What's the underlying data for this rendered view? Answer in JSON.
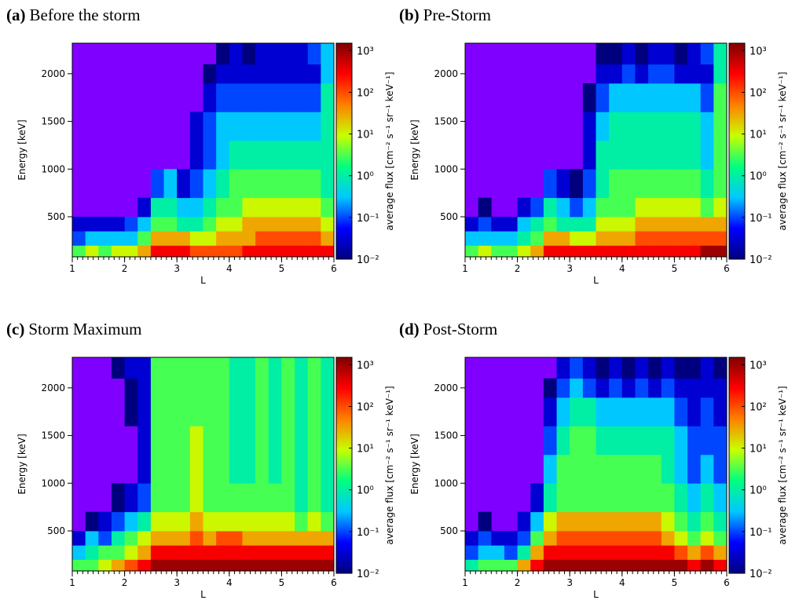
{
  "chart_data": [
    {
      "type": "heatmap",
      "label": "(a)",
      "title": "Before the storm",
      "xlabel": "L",
      "ylabel": "Energy [keV]",
      "colorbar_label": "average flux [cm⁻² s⁻¹ sr⁻¹ keV⁻¹]",
      "x_bins": [
        1,
        1.25,
        1.5,
        1.75,
        2,
        2.25,
        2.5,
        2.75,
        3,
        3.25,
        3.5,
        3.75,
        4,
        4.25,
        4.5,
        4.75,
        5,
        5.25,
        5.5,
        5.75,
        6
      ],
      "y_bins": [
        80,
        200,
        350,
        500,
        700,
        1000,
        1300,
        1600,
        1900,
        2100,
        2320
      ],
      "values": [
        [
          3,
          10,
          3,
          10,
          10,
          30,
          300,
          300,
          300,
          100,
          100,
          100,
          100,
          300,
          300,
          300,
          300,
          300,
          300,
          300
        ],
        [
          0.1,
          0.3,
          0.3,
          0.3,
          0.3,
          3,
          30,
          30,
          30,
          10,
          10,
          30,
          30,
          30,
          100,
          100,
          100,
          100,
          100,
          30
        ],
        [
          0.03,
          0.03,
          0.03,
          0.03,
          0.1,
          0.3,
          3,
          3,
          1,
          1,
          3,
          10,
          10,
          30,
          30,
          30,
          30,
          30,
          30,
          10
        ],
        [
          null,
          null,
          null,
          null,
          null,
          0.03,
          1,
          1,
          0.3,
          0.3,
          1,
          3,
          3,
          10,
          10,
          10,
          10,
          10,
          10,
          3
        ],
        [
          null,
          null,
          null,
          null,
          null,
          null,
          0.1,
          0.3,
          0.03,
          0.1,
          0.3,
          1,
          3,
          3,
          3,
          3,
          3,
          3,
          3,
          1
        ],
        [
          null,
          null,
          null,
          null,
          null,
          null,
          null,
          null,
          null,
          0.03,
          0.1,
          0.3,
          1,
          1,
          1,
          1,
          1,
          1,
          1,
          1
        ],
        [
          null,
          null,
          null,
          null,
          null,
          null,
          null,
          null,
          null,
          0.03,
          0.1,
          0.3,
          0.3,
          0.3,
          0.3,
          0.3,
          0.3,
          0.3,
          0.3,
          1
        ],
        [
          null,
          null,
          null,
          null,
          null,
          null,
          null,
          null,
          null,
          null,
          0.03,
          0.1,
          0.1,
          0.1,
          0.1,
          0.1,
          0.1,
          0.1,
          0.1,
          1
        ],
        [
          null,
          null,
          null,
          null,
          null,
          null,
          null,
          null,
          null,
          null,
          0.01,
          0.03,
          0.03,
          0.03,
          0.03,
          0.03,
          0.03,
          0.03,
          0.03,
          0.3
        ],
        [
          null,
          null,
          null,
          null,
          null,
          null,
          null,
          null,
          null,
          null,
          null,
          0.01,
          0.03,
          0.01,
          0.03,
          0.03,
          0.03,
          0.03,
          0.1,
          0.3
        ]
      ],
      "xlim": [
        1,
        6
      ],
      "ylim": [
        80,
        2320
      ],
      "xticks": [
        1,
        2,
        3,
        4,
        5,
        6
      ],
      "yticks": [
        500,
        1000,
        1500,
        2000
      ],
      "x_minor_step": 0.1,
      "clim": [
        0.01,
        1500
      ],
      "log_color": true,
      "cticks": [
        {
          "value": 0.01,
          "label": "10⁻²"
        },
        {
          "value": 0.1,
          "label": "10⁻¹"
        },
        {
          "value": 1,
          "label": "10⁰"
        },
        {
          "value": 10,
          "label": "10¹"
        },
        {
          "value": 100,
          "label": "10²"
        },
        {
          "value": 1000,
          "label": "10³"
        }
      ],
      "colormap": [
        "#00007f",
        "#0000ff",
        "#00c8ff",
        "#00ff80",
        "#c8ff00",
        "#ff8000",
        "#ff0000",
        "#7f0000"
      ],
      "empty_color": "#8000ff"
    },
    {
      "type": "heatmap",
      "label": "(b)",
      "title": "Pre-Storm",
      "xlabel": "L",
      "ylabel": "Energy [keV]",
      "colorbar_label": "average flux [cm⁻² s⁻¹ sr⁻¹ keV⁻¹]",
      "x_bins": [
        1,
        1.25,
        1.5,
        1.75,
        2,
        2.25,
        2.5,
        2.75,
        3,
        3.25,
        3.5,
        3.75,
        4,
        4.25,
        4.5,
        4.75,
        5,
        5.25,
        5.5,
        5.75,
        6
      ],
      "y_bins": [
        80,
        200,
        350,
        500,
        700,
        1000,
        1300,
        1600,
        1900,
        2100,
        2320
      ],
      "values": [
        [
          3,
          10,
          3,
          3,
          10,
          30,
          300,
          300,
          300,
          300,
          300,
          300,
          300,
          300,
          300,
          300,
          300,
          300,
          1000,
          1000
        ],
        [
          0.3,
          0.3,
          0.3,
          0.3,
          1,
          3,
          30,
          30,
          10,
          10,
          30,
          30,
          30,
          100,
          100,
          100,
          100,
          100,
          100,
          100
        ],
        [
          0.03,
          0.1,
          0.03,
          0.03,
          0.3,
          1,
          3,
          1,
          1,
          1,
          10,
          10,
          10,
          30,
          30,
          30,
          30,
          30,
          30,
          30
        ],
        [
          null,
          0.01,
          null,
          null,
          0.03,
          0.1,
          1,
          0.3,
          0.1,
          0.3,
          3,
          3,
          3,
          10,
          10,
          10,
          10,
          10,
          3,
          10
        ],
        [
          null,
          null,
          null,
          null,
          null,
          null,
          0.1,
          0.03,
          0.01,
          0.1,
          1,
          3,
          3,
          3,
          3,
          3,
          3,
          3,
          1,
          3
        ],
        [
          null,
          null,
          null,
          null,
          null,
          null,
          null,
          null,
          null,
          0.03,
          1,
          1,
          1,
          1,
          1,
          1,
          1,
          1,
          0.3,
          3
        ],
        [
          null,
          null,
          null,
          null,
          null,
          null,
          null,
          null,
          null,
          0.03,
          0.3,
          1,
          1,
          1,
          1,
          1,
          1,
          1,
          0.3,
          3
        ],
        [
          null,
          null,
          null,
          null,
          null,
          null,
          null,
          null,
          null,
          0.01,
          0.1,
          0.3,
          0.3,
          0.3,
          0.3,
          0.3,
          0.3,
          0.3,
          0.1,
          3
        ],
        [
          null,
          null,
          null,
          null,
          null,
          null,
          null,
          null,
          null,
          null,
          0.03,
          0.03,
          0.1,
          0.03,
          0.1,
          0.1,
          0.03,
          0.03,
          0.03,
          1
        ],
        [
          null,
          null,
          null,
          null,
          null,
          null,
          null,
          null,
          null,
          null,
          0.01,
          0.01,
          0.03,
          0.01,
          0.03,
          0.03,
          0.01,
          0.03,
          0.1,
          1
        ]
      ],
      "xlim": [
        1,
        6
      ],
      "ylim": [
        80,
        2320
      ],
      "xticks": [
        1,
        2,
        3,
        4,
        5,
        6
      ],
      "yticks": [
        500,
        1000,
        1500,
        2000
      ],
      "x_minor_step": 0.1,
      "clim": [
        0.01,
        1500
      ],
      "log_color": true,
      "cticks": [
        {
          "value": 0.01,
          "label": "10⁻²"
        },
        {
          "value": 0.1,
          "label": "10⁻¹"
        },
        {
          "value": 1,
          "label": "10⁰"
        },
        {
          "value": 10,
          "label": "10¹"
        },
        {
          "value": 100,
          "label": "10²"
        },
        {
          "value": 1000,
          "label": "10³"
        }
      ],
      "colormap": [
        "#00007f",
        "#0000ff",
        "#00c8ff",
        "#00ff80",
        "#c8ff00",
        "#ff8000",
        "#ff0000",
        "#7f0000"
      ],
      "empty_color": "#8000ff"
    },
    {
      "type": "heatmap",
      "label": "(c)",
      "title": "Storm Maximum",
      "xlabel": "L",
      "ylabel": "Energy [keV]",
      "colorbar_label": "average flux [cm⁻² s⁻¹ sr⁻¹ keV⁻¹]",
      "x_bins": [
        1,
        1.25,
        1.5,
        1.75,
        2,
        2.25,
        2.5,
        2.75,
        3,
        3.25,
        3.5,
        3.75,
        4,
        4.25,
        4.5,
        4.75,
        5,
        5.25,
        5.5,
        5.75,
        6
      ],
      "y_bins": [
        80,
        200,
        350,
        500,
        700,
        1000,
        1300,
        1600,
        1900,
        2100,
        2320
      ],
      "values": [
        [
          3,
          3,
          10,
          30,
          100,
          300,
          1000,
          1000,
          1000,
          1000,
          1000,
          1000,
          1000,
          1000,
          1000,
          1000,
          1000,
          1000,
          1000,
          1000
        ],
        [
          0.3,
          1,
          3,
          3,
          10,
          30,
          300,
          300,
          300,
          300,
          300,
          300,
          300,
          300,
          300,
          300,
          300,
          300,
          300,
          300
        ],
        [
          0.03,
          0.3,
          0.1,
          1,
          3,
          10,
          30,
          30,
          30,
          100,
          30,
          100,
          100,
          30,
          30,
          30,
          30,
          30,
          30,
          30
        ],
        [
          null,
          0.01,
          0.03,
          0.1,
          0.3,
          1,
          10,
          10,
          10,
          30,
          10,
          10,
          10,
          10,
          10,
          10,
          10,
          3,
          10,
          3
        ],
        [
          null,
          null,
          null,
          0.01,
          0.03,
          0.1,
          3,
          3,
          3,
          10,
          3,
          3,
          3,
          3,
          3,
          3,
          3,
          1,
          3,
          1
        ],
        [
          null,
          null,
          null,
          null,
          null,
          0.03,
          3,
          3,
          3,
          10,
          3,
          3,
          1,
          1,
          3,
          1,
          3,
          1,
          3,
          1
        ],
        [
          null,
          null,
          null,
          null,
          null,
          0.03,
          3,
          3,
          3,
          10,
          3,
          3,
          1,
          1,
          3,
          1,
          3,
          1,
          3,
          1
        ],
        [
          null,
          null,
          null,
          null,
          0.01,
          0.03,
          3,
          3,
          3,
          3,
          3,
          3,
          1,
          1,
          3,
          1,
          3,
          1,
          3,
          1
        ],
        [
          null,
          null,
          null,
          null,
          0.01,
          0.03,
          3,
          3,
          3,
          3,
          3,
          3,
          1,
          1,
          3,
          1,
          3,
          1,
          3,
          1
        ],
        [
          null,
          null,
          null,
          0.01,
          0.03,
          0.03,
          3,
          3,
          3,
          3,
          3,
          3,
          1,
          1,
          3,
          1,
          3,
          1,
          3,
          1
        ]
      ],
      "xlim": [
        1,
        6
      ],
      "ylim": [
        80,
        2320
      ],
      "xticks": [
        1,
        2,
        3,
        4,
        5,
        6
      ],
      "yticks": [
        500,
        1000,
        1500,
        2000
      ],
      "x_minor_step": 0.1,
      "clim": [
        0.01,
        1500
      ],
      "log_color": true,
      "cticks": [
        {
          "value": 0.01,
          "label": "10⁻²"
        },
        {
          "value": 0.1,
          "label": "10⁻¹"
        },
        {
          "value": 1,
          "label": "10⁰"
        },
        {
          "value": 10,
          "label": "10¹"
        },
        {
          "value": 100,
          "label": "10²"
        },
        {
          "value": 1000,
          "label": "10³"
        }
      ],
      "colormap": [
        "#00007f",
        "#0000ff",
        "#00c8ff",
        "#00ff80",
        "#c8ff00",
        "#ff8000",
        "#ff0000",
        "#7f0000"
      ],
      "empty_color": "#8000ff"
    },
    {
      "type": "heatmap",
      "label": "(d)",
      "title": "Post-Storm",
      "xlabel": "L",
      "ylabel": "Energy [keV]",
      "colorbar_label": "average flux [cm⁻² s⁻¹ sr⁻¹ keV⁻¹]",
      "x_bins": [
        1,
        1.25,
        1.5,
        1.75,
        2,
        2.25,
        2.5,
        2.75,
        3,
        3.25,
        3.5,
        3.75,
        4,
        4.25,
        4.5,
        4.75,
        5,
        5.25,
        5.5,
        5.75,
        6
      ],
      "y_bins": [
        80,
        200,
        350,
        500,
        700,
        1000,
        1300,
        1600,
        1900,
        2100,
        2320
      ],
      "values": [
        [
          1,
          3,
          3,
          3,
          30,
          300,
          1000,
          1000,
          1000,
          1000,
          1000,
          1000,
          1000,
          1000,
          1000,
          1000,
          1000,
          300,
          1000,
          300
        ],
        [
          0.1,
          0.3,
          0.3,
          0.1,
          1,
          30,
          300,
          300,
          300,
          300,
          300,
          300,
          300,
          300,
          300,
          300,
          100,
          30,
          100,
          30
        ],
        [
          0.03,
          0.1,
          0.03,
          0.03,
          0.1,
          3,
          30,
          100,
          100,
          100,
          100,
          100,
          100,
          100,
          100,
          30,
          10,
          3,
          10,
          3
        ],
        [
          null,
          0.01,
          null,
          null,
          0.03,
          0.3,
          10,
          30,
          30,
          30,
          30,
          30,
          30,
          30,
          30,
          10,
          3,
          1,
          3,
          1
        ],
        [
          null,
          null,
          null,
          null,
          null,
          0.03,
          1,
          3,
          3,
          3,
          3,
          3,
          3,
          3,
          3,
          3,
          1,
          0.3,
          1,
          0.3
        ],
        [
          null,
          null,
          null,
          null,
          null,
          null,
          0.3,
          3,
          3,
          3,
          3,
          3,
          3,
          3,
          3,
          1,
          0.3,
          0.1,
          0.3,
          0.1
        ],
        [
          null,
          null,
          null,
          null,
          null,
          null,
          0.1,
          1,
          3,
          3,
          1,
          1,
          1,
          1,
          1,
          1,
          0.3,
          0.1,
          0.1,
          0.1
        ],
        [
          null,
          null,
          null,
          null,
          null,
          null,
          0.03,
          0.3,
          1,
          1,
          0.3,
          0.3,
          0.3,
          0.3,
          0.3,
          0.3,
          0.1,
          0.03,
          0.1,
          0.03
        ],
        [
          null,
          null,
          null,
          null,
          null,
          null,
          0.01,
          0.1,
          0.3,
          0.1,
          0.03,
          0.1,
          0.03,
          0.1,
          0.03,
          0.1,
          0.03,
          0.03,
          0.03,
          0.03
        ],
        [
          null,
          null,
          null,
          null,
          null,
          null,
          null,
          0.03,
          0.1,
          0.03,
          0.01,
          0.03,
          0.01,
          0.03,
          0.01,
          0.03,
          0.01,
          0.01,
          0.03,
          0.01
        ]
      ],
      "xlim": [
        1,
        6
      ],
      "ylim": [
        80,
        2320
      ],
      "xticks": [
        1,
        2,
        3,
        4,
        5,
        6
      ],
      "yticks": [
        500,
        1000,
        1500,
        2000
      ],
      "x_minor_step": 0.1,
      "clim": [
        0.01,
        1500
      ],
      "log_color": true,
      "cticks": [
        {
          "value": 0.01,
          "label": "10⁻²"
        },
        {
          "value": 0.1,
          "label": "10⁻¹"
        },
        {
          "value": 1,
          "label": "10⁰"
        },
        {
          "value": 10,
          "label": "10¹"
        },
        {
          "value": 100,
          "label": "10²"
        },
        {
          "value": 1000,
          "label": "10³"
        }
      ],
      "colormap": [
        "#00007f",
        "#0000ff",
        "#00c8ff",
        "#00ff80",
        "#c8ff00",
        "#ff8000",
        "#ff0000",
        "#7f0000"
      ],
      "empty_color": "#8000ff"
    }
  ]
}
